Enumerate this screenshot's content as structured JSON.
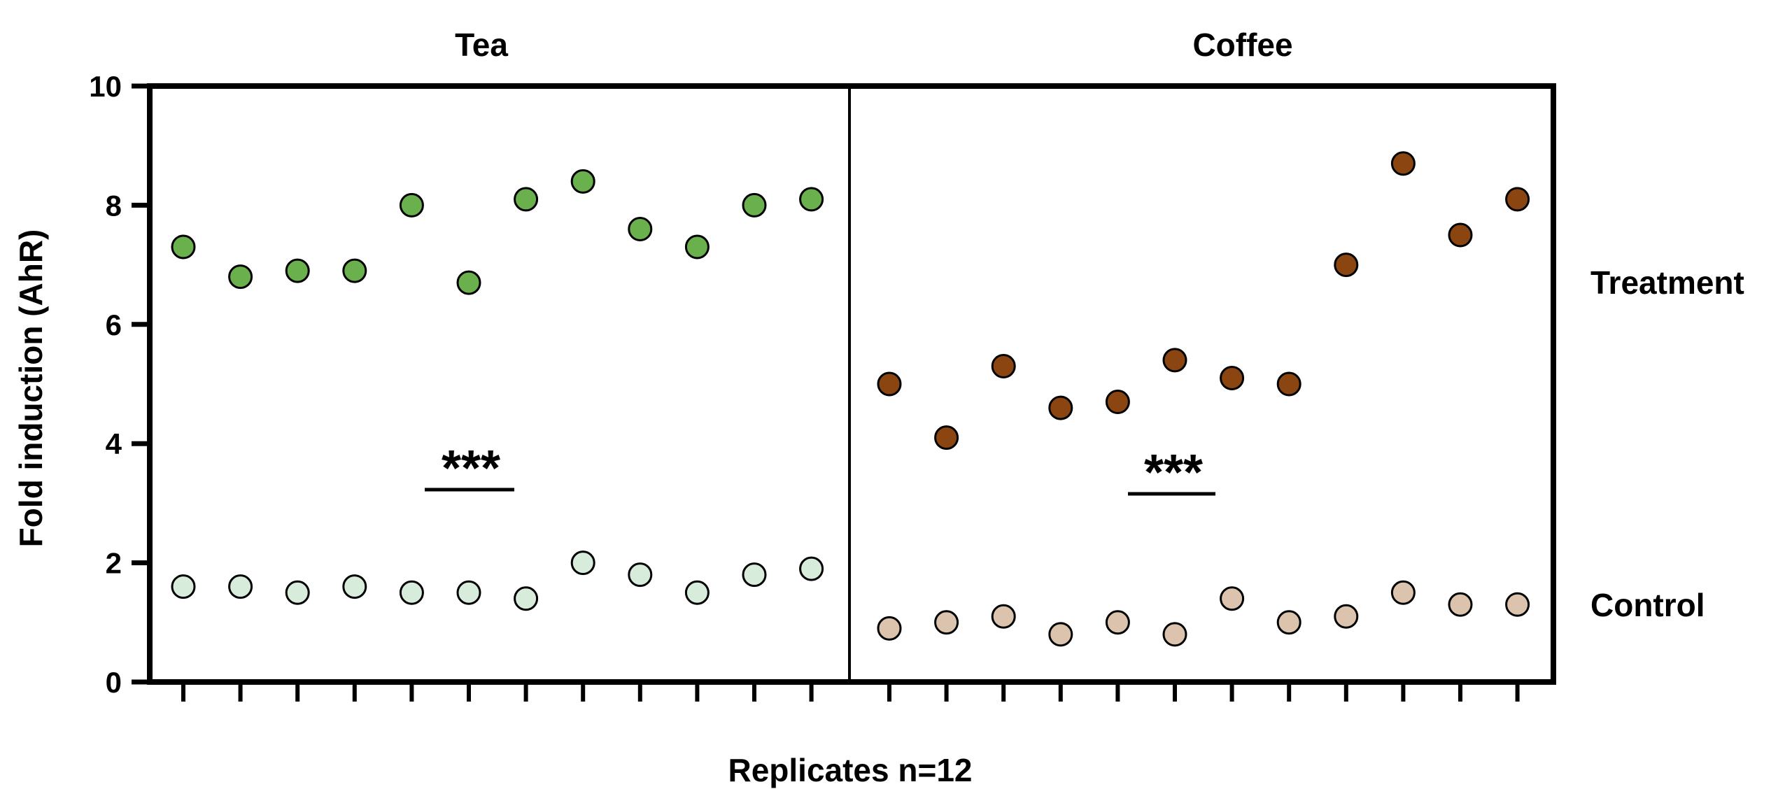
{
  "chart_data": {
    "type": "scatter",
    "ylabel": "Fold induction (AhR)",
    "xlabel": "Replicates n=12",
    "ylim": [
      0,
      10
    ],
    "yticks": [
      "0",
      "2",
      "4",
      "6",
      "8",
      "10"
    ],
    "row_labels": {
      "treatment": "Treatment",
      "control": "Control"
    },
    "significance": "***",
    "panels": [
      {
        "title": "Tea",
        "treatment": {
          "name": "Treatment",
          "color": "#6ab04c",
          "values": [
            7.3,
            6.8,
            6.9,
            6.9,
            8.0,
            6.7,
            8.1,
            8.4,
            7.6,
            7.3,
            8.0,
            8.1
          ]
        },
        "control": {
          "name": "Control",
          "color": "#d8ecdc",
          "values": [
            1.6,
            1.6,
            1.5,
            1.6,
            1.5,
            1.5,
            1.4,
            2.0,
            1.8,
            1.5,
            1.8,
            1.9
          ]
        }
      },
      {
        "title": "Coffee",
        "treatment": {
          "name": "Treatment",
          "color": "#8b4511",
          "values": [
            5.0,
            4.1,
            5.3,
            4.6,
            4.7,
            5.4,
            5.1,
            5.0,
            7.0,
            8.7,
            7.5,
            8.1
          ]
        },
        "control": {
          "name": "Control",
          "color": "#dcc3ad",
          "values": [
            0.9,
            1.0,
            1.1,
            0.8,
            1.0,
            0.8,
            1.4,
            1.0,
            1.1,
            1.5,
            1.3,
            1.3
          ]
        }
      }
    ]
  }
}
